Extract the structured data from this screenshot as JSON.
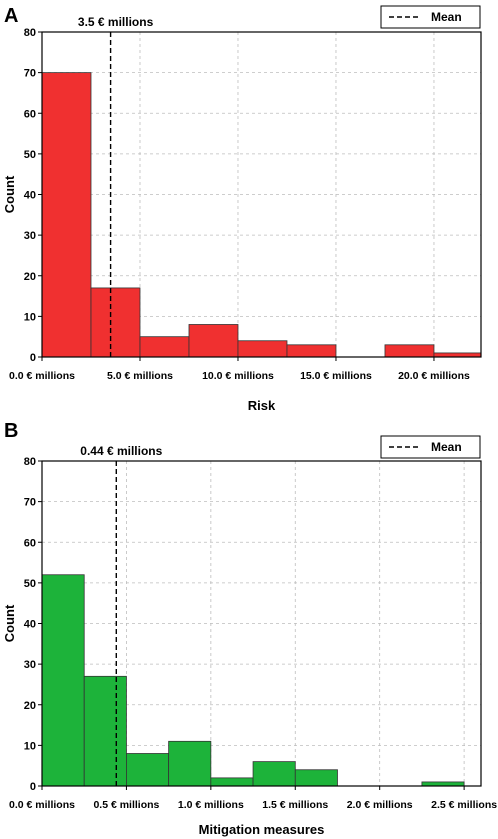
{
  "chart_data": [
    {
      "type": "bar",
      "panel": "A",
      "xlabel": "Risk",
      "ylabel": "Count",
      "ylim": [
        0,
        80
      ],
      "yticks": [
        0,
        10,
        20,
        30,
        40,
        50,
        60,
        70,
        80
      ],
      "xlim": [
        0,
        22.4
      ],
      "xticks": [
        {
          "value": 0.0,
          "label": "0.0 € millions"
        },
        {
          "value": 5.0,
          "label": "5.0 € millions"
        },
        {
          "value": 10.0,
          "label": "10.0 € millions"
        },
        {
          "value": 15.0,
          "label": "15.0 € millions"
        },
        {
          "value": 20.0,
          "label": "20.0 € millions"
        }
      ],
      "bin_edges": [
        0,
        2.5,
        5.0,
        7.5,
        10.0,
        12.5,
        15.0,
        17.5,
        20.0,
        22.4
      ],
      "values": [
        70,
        17,
        5,
        8,
        4,
        3,
        0,
        3,
        1
      ],
      "color": "#f03030",
      "mean": 3.5,
      "mean_label": "3.5 € millions",
      "legend": "Mean",
      "legend_position": "top-right",
      "grid": true
    },
    {
      "type": "bar",
      "panel": "B",
      "xlabel": "Mitigation measures",
      "ylabel": "Count",
      "ylim": [
        0,
        80
      ],
      "yticks": [
        0,
        10,
        20,
        30,
        40,
        50,
        60,
        70,
        80
      ],
      "xlim": [
        0,
        2.6
      ],
      "xticks": [
        {
          "value": 0.0,
          "label": "0.0 € millions"
        },
        {
          "value": 0.5,
          "label": "0.5 € millions"
        },
        {
          "value": 1.0,
          "label": "1.0 € millions"
        },
        {
          "value": 1.5,
          "label": "1.5 € millions"
        },
        {
          "value": 2.0,
          "label": "2.0 € millions"
        },
        {
          "value": 2.5,
          "label": "2.5 € millions"
        }
      ],
      "bin_edges": [
        0,
        0.25,
        0.5,
        0.75,
        1.0,
        1.25,
        1.5,
        1.75,
        2.0,
        2.25,
        2.5
      ],
      "values": [
        52,
        27,
        8,
        11,
        2,
        6,
        4,
        0,
        0,
        1
      ],
      "color": "#1db33a",
      "mean": 0.44,
      "mean_label": "0.44 € millions",
      "legend": "Mean",
      "legend_position": "top-right",
      "grid": true
    }
  ]
}
